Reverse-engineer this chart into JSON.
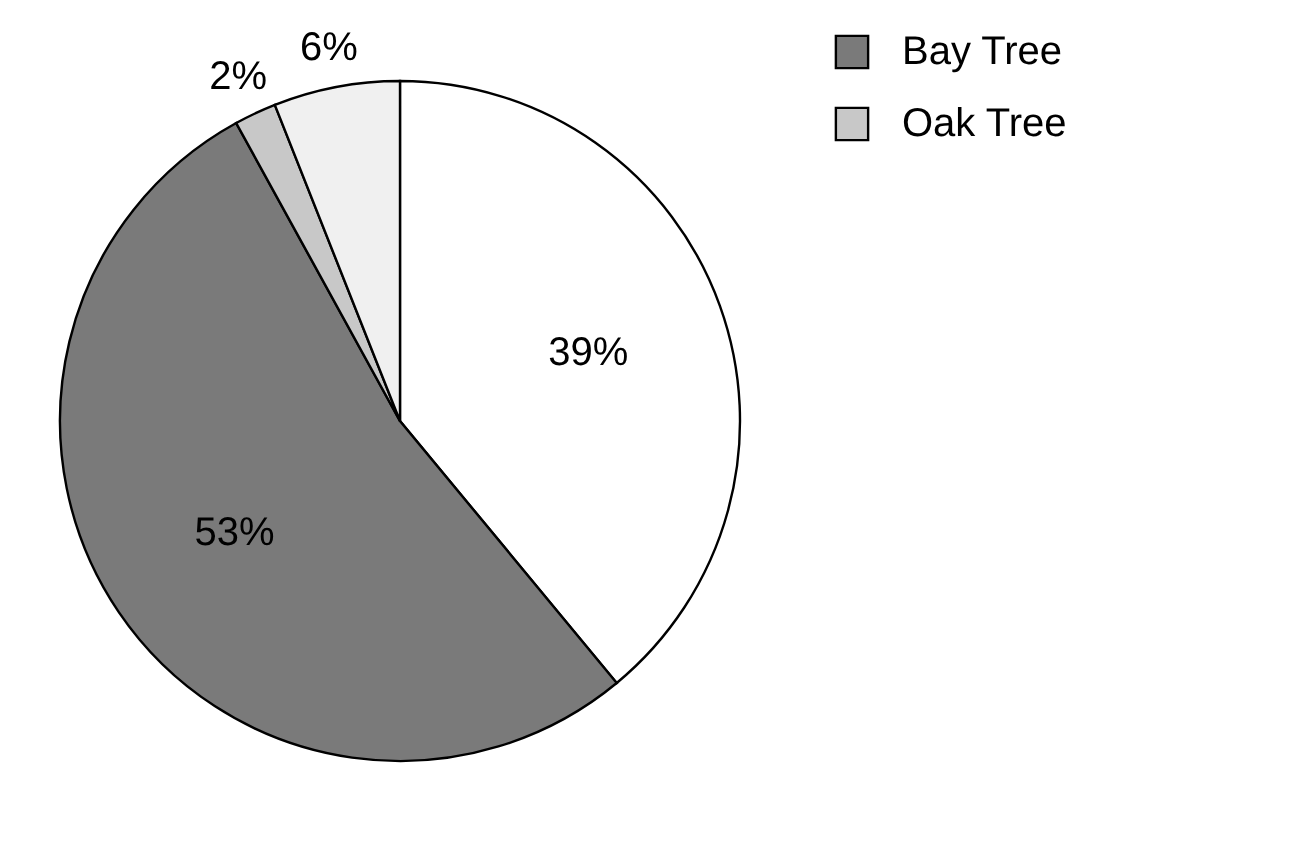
{
  "chart_data": {
    "type": "pie",
    "categories": [
      null,
      "Bay Tree",
      "Oak Tree",
      null
    ],
    "values": [
      39,
      53,
      2,
      6
    ],
    "colors": [
      "#ffffff",
      "#7a7a7a",
      "#c8c8c8",
      "#f0f0f0"
    ],
    "value_labels": [
      "39%",
      "53%",
      "2%",
      "6%"
    ],
    "legend": "top right"
  }
}
